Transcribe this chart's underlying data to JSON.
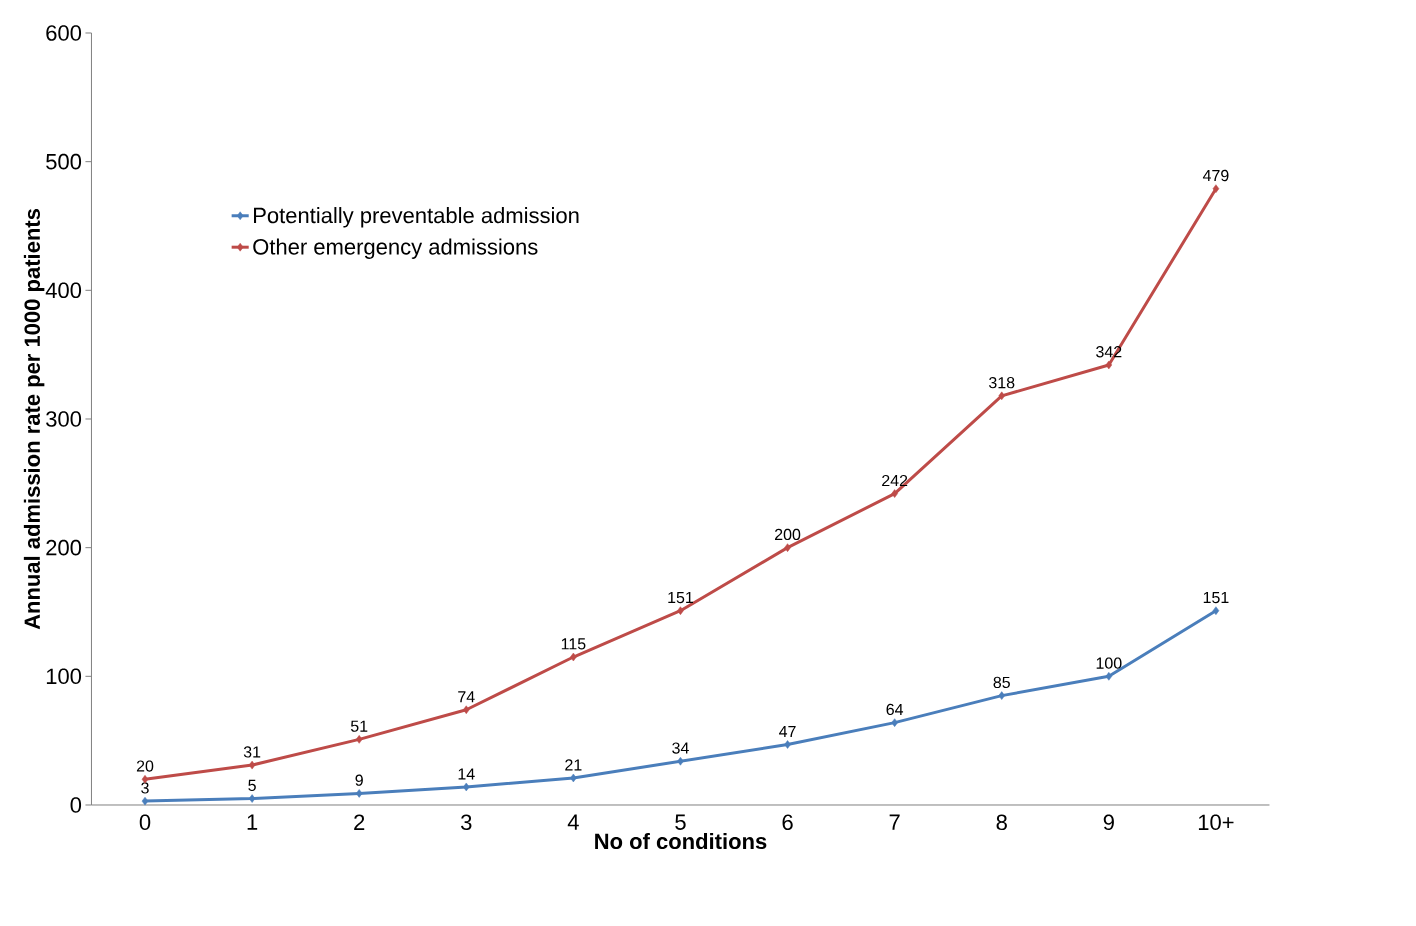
{
  "chart_data": {
    "type": "line",
    "xlabel": "No of conditions",
    "ylabel": "Annual admission rate per 1000 patients",
    "categories": [
      "0",
      "1",
      "2",
      "3",
      "4",
      "5",
      "6",
      "7",
      "8",
      "9",
      "10+"
    ],
    "series": [
      {
        "name": "Potentially preventable admission",
        "color": "#4a7ebb",
        "values": [
          3,
          5,
          9,
          14,
          21,
          34,
          47,
          64,
          85,
          100,
          151
        ]
      },
      {
        "name": "Other emergency admissions",
        "color": "#be4b48",
        "values": [
          20,
          31,
          51,
          74,
          115,
          151,
          200,
          242,
          318,
          342,
          479
        ]
      }
    ],
    "ylim": [
      0,
      600
    ],
    "yticks": [
      0,
      100,
      200,
      300,
      400,
      500,
      600
    ],
    "data_labels": true,
    "legend": "top left",
    "marker": "diamond",
    "line_style": "solid"
  }
}
